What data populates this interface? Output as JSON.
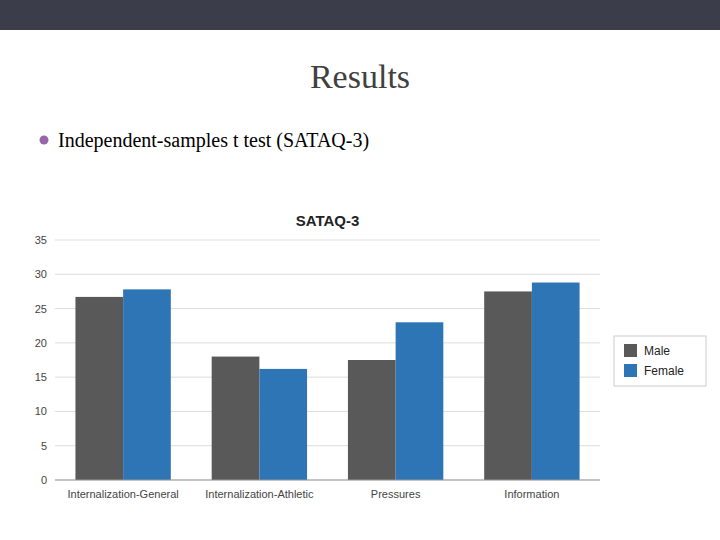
{
  "title": "Results",
  "subtitle": "Independent-samples t test (SATAQ-3)",
  "chart_data": {
    "type": "bar",
    "title": "SATAQ-3",
    "categories": [
      "Internalization-General",
      "Internalization-Athletic",
      "Pressures",
      "Information"
    ],
    "series": [
      {
        "name": "Male",
        "color": "#595959",
        "values": [
          26.7,
          18.0,
          17.5,
          27.5
        ]
      },
      {
        "name": "Female",
        "color": "#2e75b6",
        "values": [
          27.8,
          16.2,
          23.0,
          28.8
        ]
      }
    ],
    "ylim": [
      0,
      35
    ],
    "yticks": [
      0,
      5,
      10,
      15,
      20,
      25,
      30,
      35
    ],
    "grid": true,
    "legend": "right"
  }
}
